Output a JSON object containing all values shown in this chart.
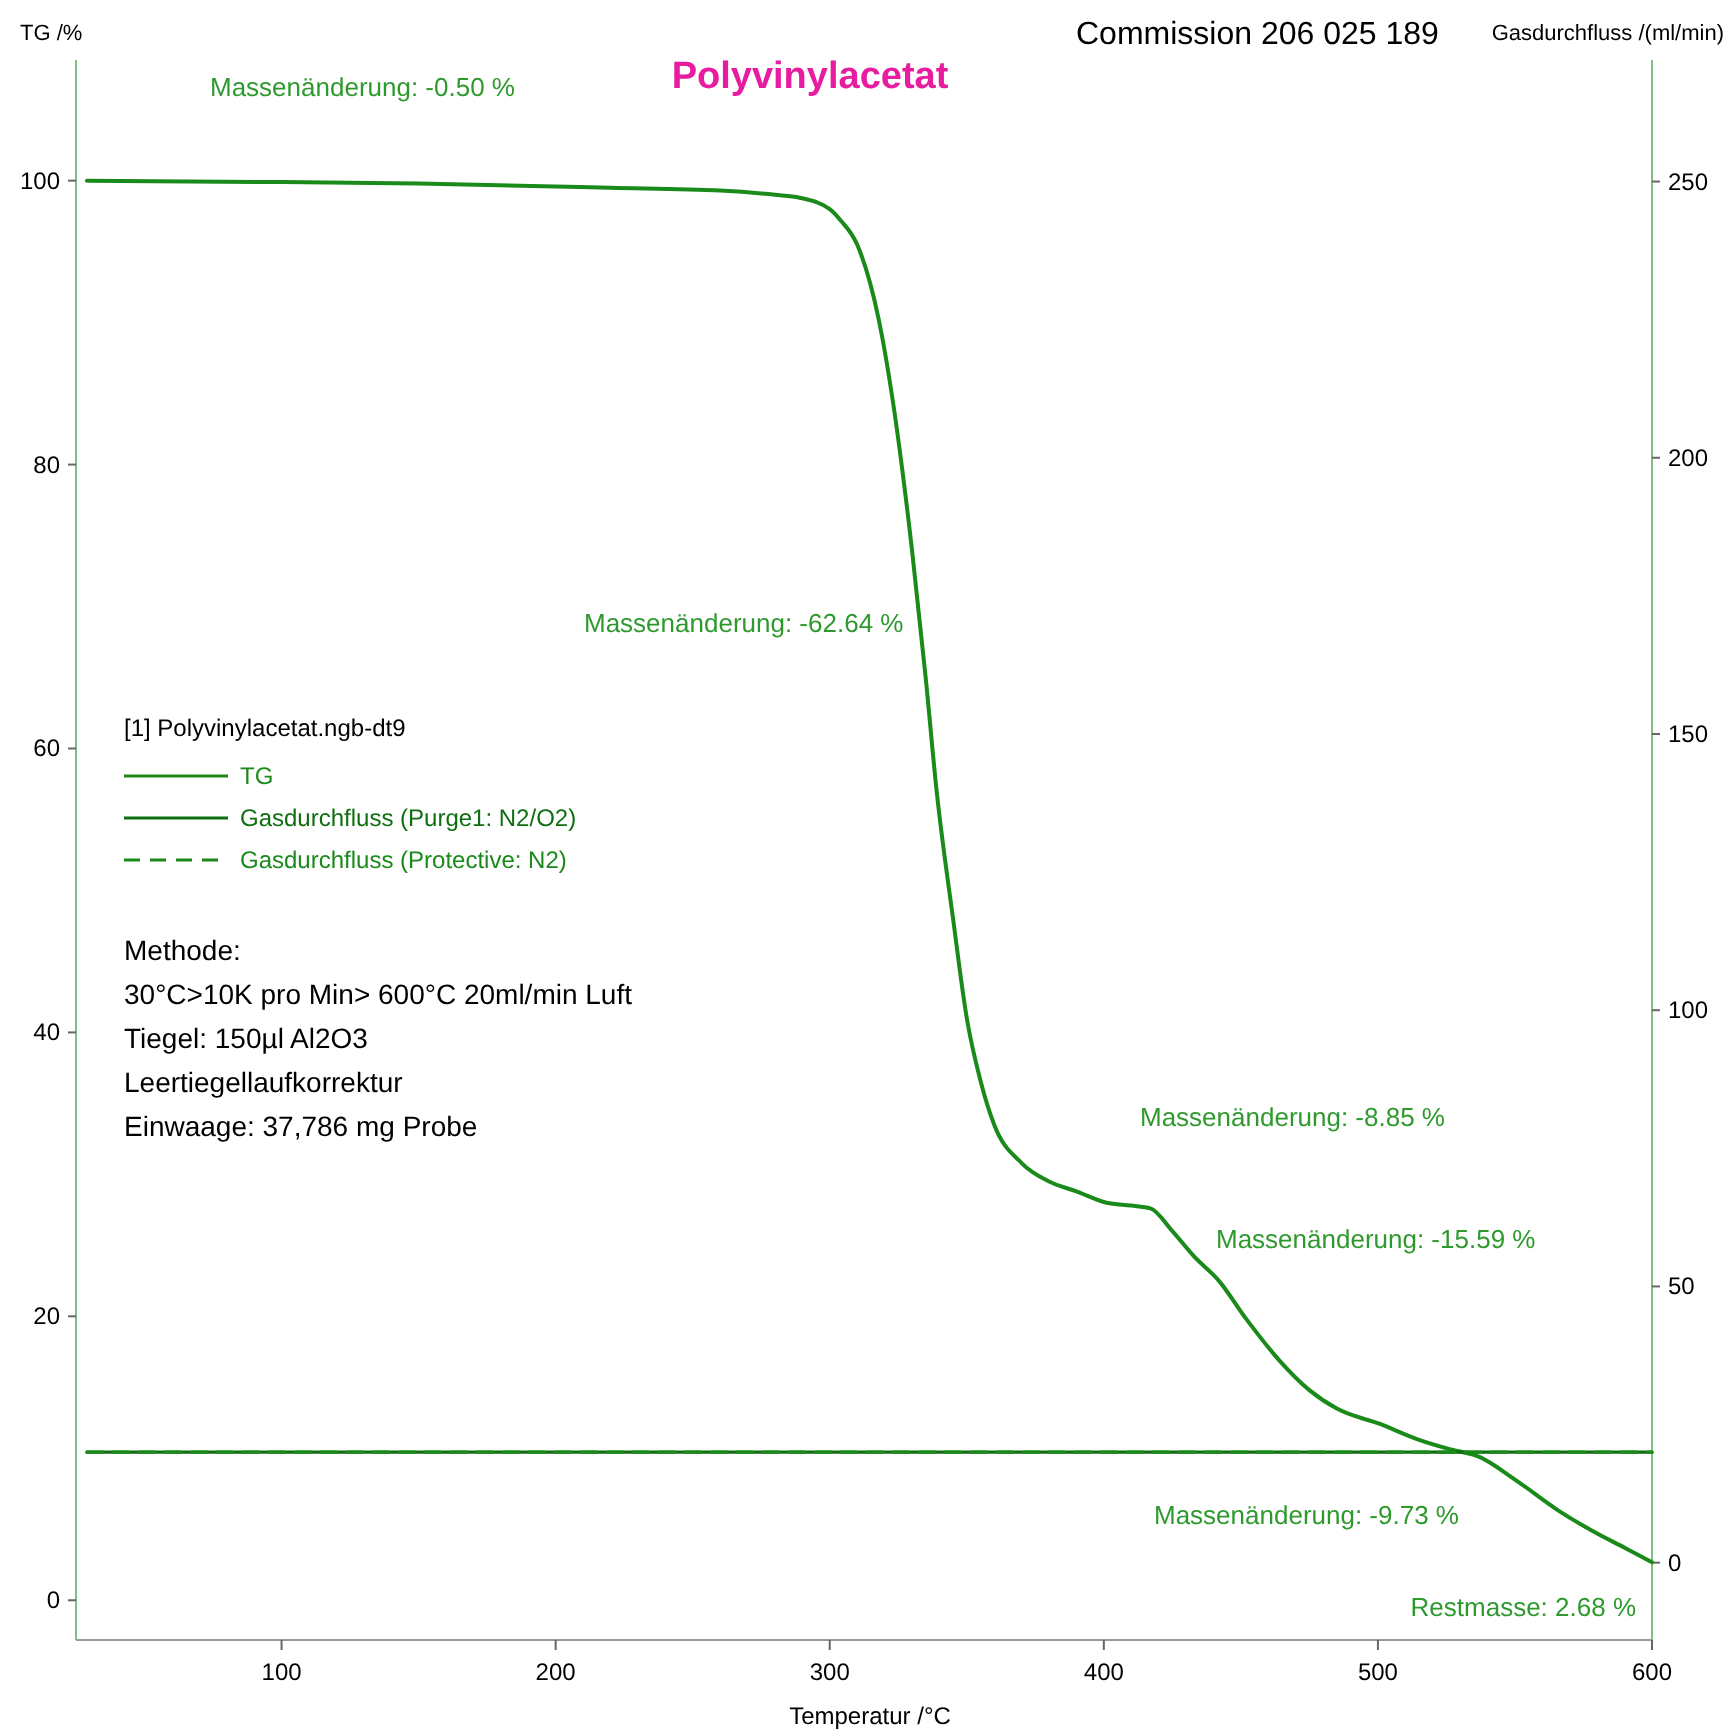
{
  "chart_data": {
    "type": "line",
    "title": "Polyvinylacetat",
    "xlabel": "Temperatur /°C",
    "ylabel": "TG /%",
    "y2label": "Gasdurchfluss /(ml/min)",
    "legend_title": "[1]  Polyvinylacetat.ngb-dt9",
    "legend": "left",
    "xlim": [
      25,
      600
    ],
    "xticks": [
      100,
      200,
      300,
      400,
      500,
      600
    ],
    "ylim": [
      -2.8,
      108.5
    ],
    "yticks": [
      0,
      20,
      40,
      60,
      80,
      100
    ],
    "y2lim": [
      -14,
      272
    ],
    "y2ticks": [
      0,
      50,
      100,
      150,
      200,
      250
    ],
    "grid": false,
    "series": [
      {
        "name": "TG",
        "color": "#1a8a1a",
        "x": [
          29,
          100,
          150,
          220,
          260,
          280,
          289,
          300,
          304,
          310,
          318,
          323,
          330,
          335,
          339,
          345,
          350,
          355,
          360,
          370,
          380,
          390,
          401,
          410,
          417,
          425,
          433,
          442,
          452,
          464,
          475,
          485,
          501,
          515,
          527,
          537,
          550,
          566,
          580,
          590,
          600
        ],
        "values": [
          100,
          99.9,
          99.8,
          99.5,
          99.3,
          99,
          98.8,
          98,
          97.2,
          95.5,
          90.1,
          84.5,
          74,
          65,
          57,
          48,
          41,
          36.6,
          33.5,
          30.8,
          29.5,
          28.8,
          28,
          27.8,
          27.6,
          26,
          24.2,
          22.5,
          19.8,
          16.9,
          14.8,
          13.5,
          12.4,
          11.3,
          10.6,
          10.1,
          8.5,
          6.3,
          4.7,
          3.7,
          2.68
        ]
      },
      {
        "name": "Gasdurchfluss (Purge1: N2/O2)",
        "color": "#0f6e0f",
        "axis": "y2",
        "x": [
          29,
          600
        ],
        "values": [
          20,
          20
        ]
      },
      {
        "name": "Gasdurchfluss (Protective: N2)",
        "color": "#1a8a1a",
        "axis": "y2",
        "line_style": "dashed",
        "x": [
          29,
          600
        ],
        "values": [
          20,
          20
        ]
      }
    ],
    "annotations": [
      "Commission 206 025 189",
      "Methode:",
      "30°C>10K pro Min> 600°C  20ml/min Luft",
      "Tiegel: 150µl Al2O3",
      "Leertiegellaufkorrektur",
      "Einwaage:  37,786 mg  Probe",
      "Massenänderung: -0.50 %",
      "Massenänderung: -62.64 %",
      "Massenänderung: -8.85 %",
      "Massenänderung: -15.59 %",
      "Massenänderung: -9.73 %",
      "Restmasse: 2.68 %"
    ]
  }
}
